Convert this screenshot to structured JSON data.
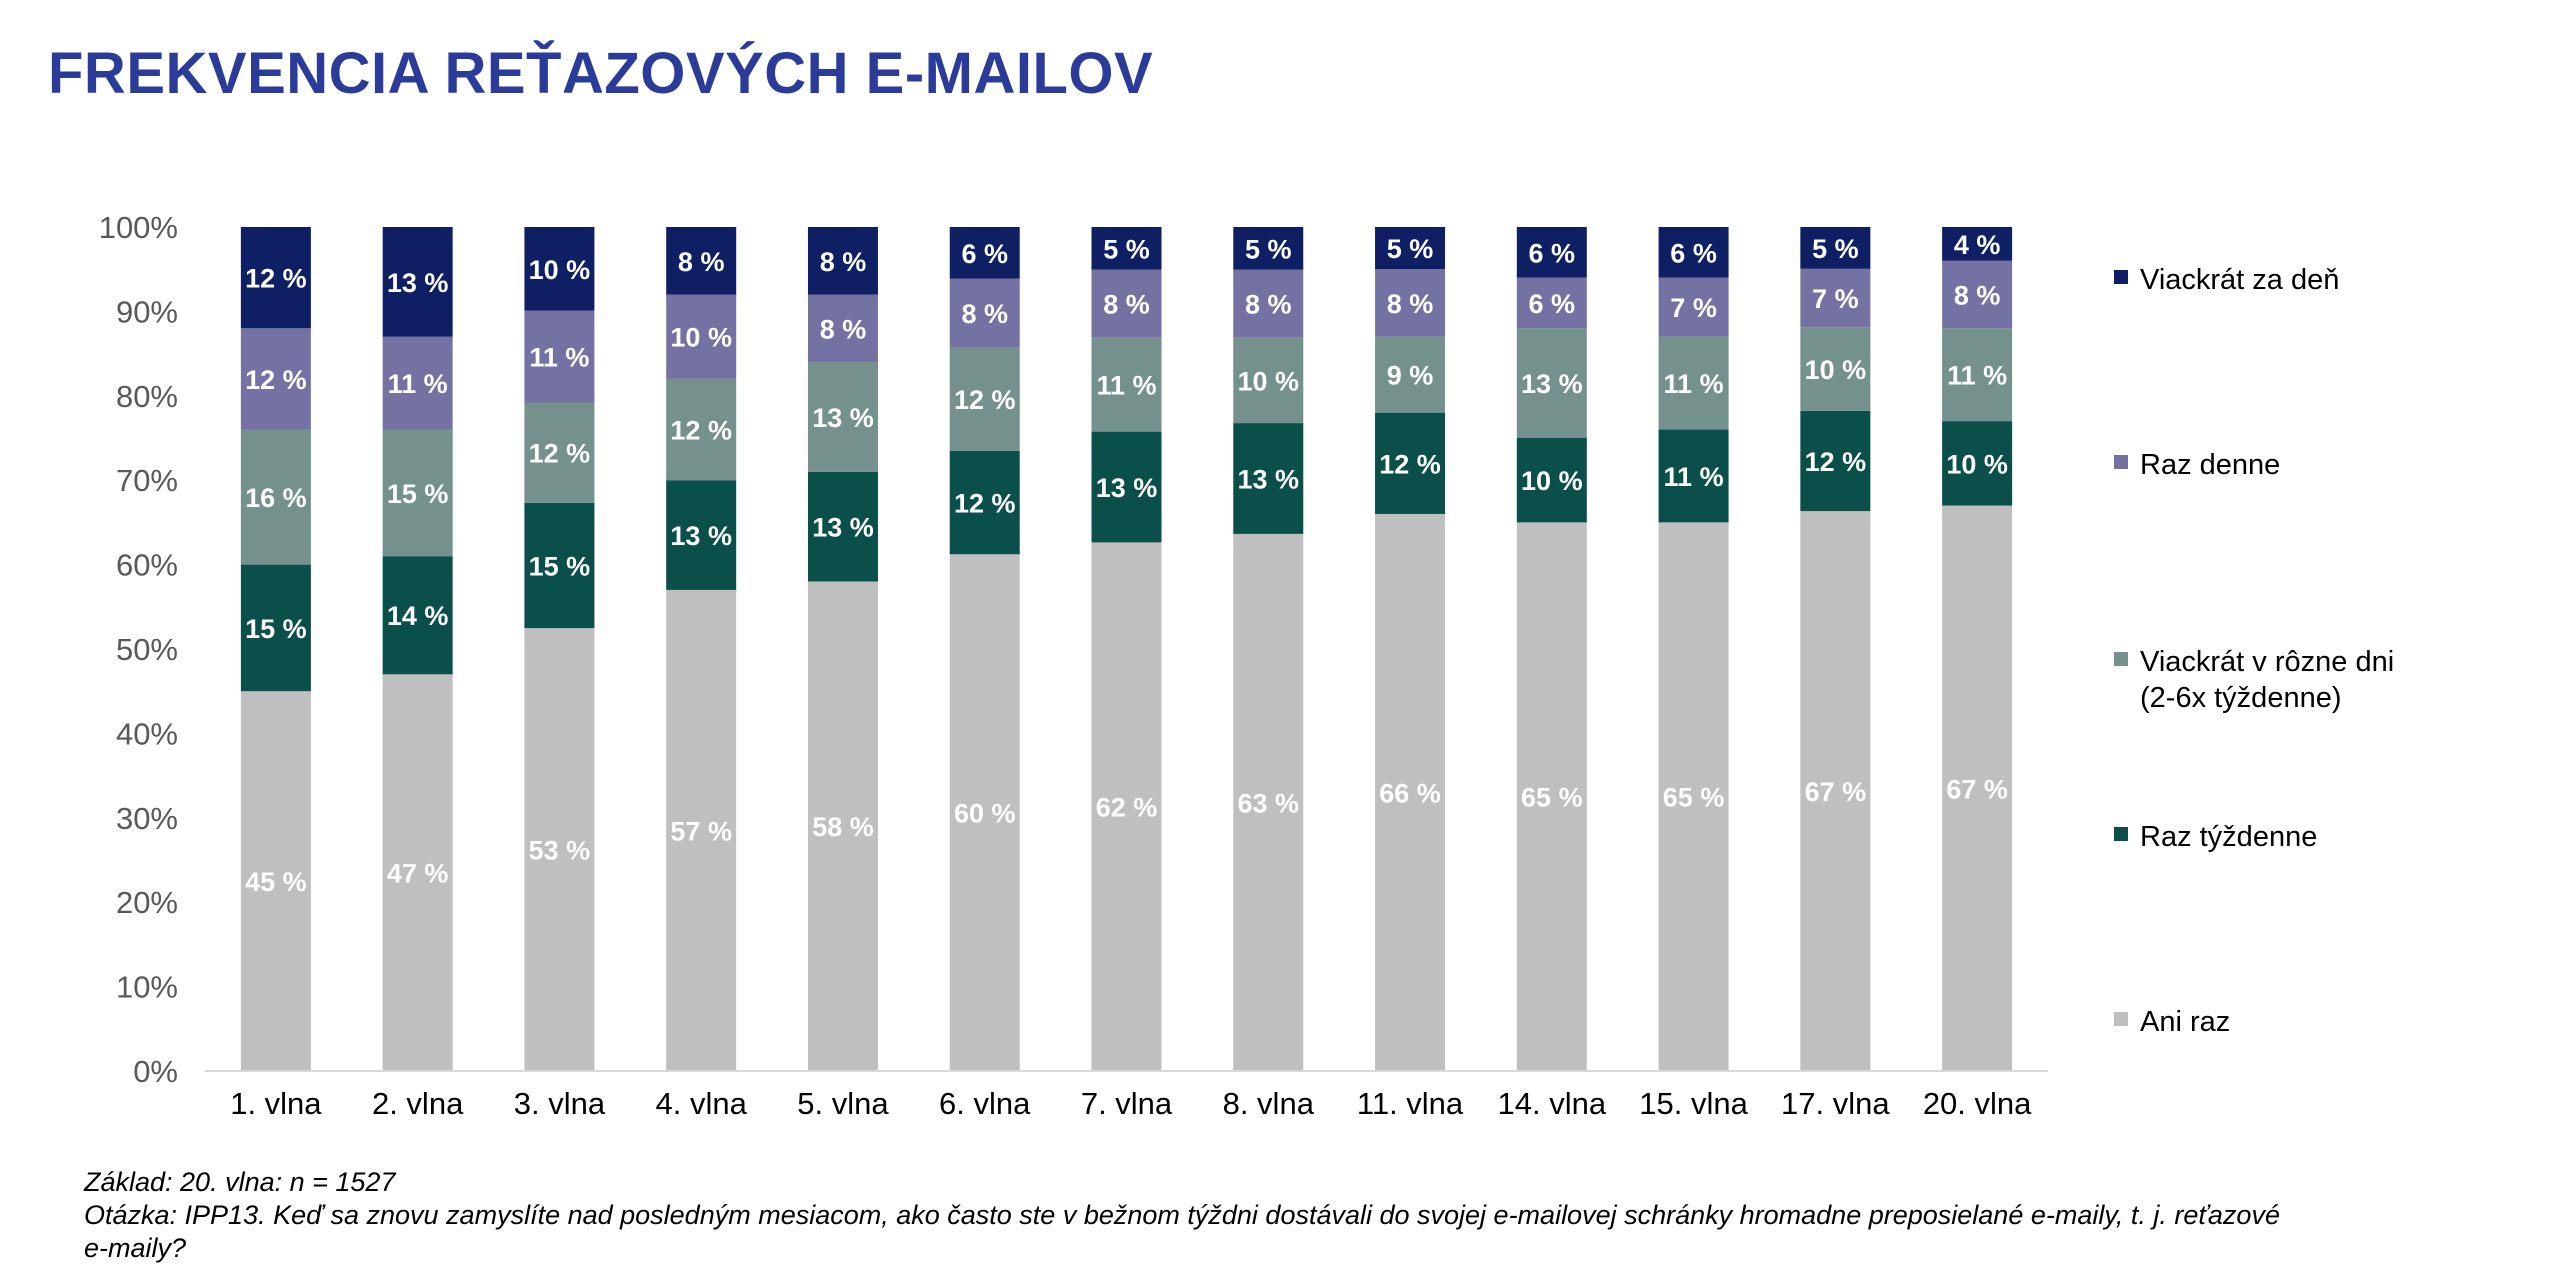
{
  "title": "FREKVENCIA REŤAZOVÝCH E-MAILOV",
  "chart_data": {
    "type": "bar",
    "stacked": true,
    "percent": true,
    "categories": [
      "1. vlna",
      "2. vlna",
      "3. vlna",
      "4. vlna",
      "5. vlna",
      "6. vlna",
      "7. vlna",
      "8. vlna",
      "11. vlna",
      "14. vlna",
      "15. vlna",
      "17. vlna",
      "20. vlna"
    ],
    "ylim": [
      0,
      100
    ],
    "yticks": [
      "0%",
      "10%",
      "20%",
      "30%",
      "40%",
      "50%",
      "60%",
      "70%",
      "80%",
      "90%",
      "100%"
    ],
    "grid": false,
    "legend_position": "right",
    "series": [
      {
        "name": "Ani raz",
        "color": "#BFBFBF",
        "values": [
          45,
          47,
          53,
          57,
          58,
          60,
          62,
          63,
          66,
          65,
          65,
          67,
          67
        ]
      },
      {
        "name": "Raz týždenne",
        "color": "#0B4F4B",
        "values": [
          15,
          14,
          15,
          13,
          13,
          12,
          13,
          13,
          12,
          10,
          11,
          12,
          10
        ]
      },
      {
        "name": "Viackrát v rôzne dni (2-6x týždenne)",
        "name_lines": [
          "Viackrát v rôzne dni",
          "(2-6x týždenne)"
        ],
        "color": "#75918D",
        "values": [
          16,
          15,
          12,
          12,
          13,
          12,
          11,
          10,
          9,
          13,
          11,
          10,
          11
        ]
      },
      {
        "name": "Raz denne",
        "color": "#7472A3",
        "values": [
          12,
          11,
          11,
          10,
          8,
          8,
          8,
          8,
          8,
          6,
          7,
          7,
          8
        ]
      },
      {
        "name": "Viackrát za deň",
        "color": "#0F1F63",
        "values": [
          12,
          13,
          10,
          8,
          8,
          6,
          5,
          5,
          5,
          6,
          6,
          5,
          4
        ]
      }
    ],
    "value_suffix": " %"
  },
  "notes": {
    "base": "Základ: 20. vlna: n = 1527",
    "question_line1": "Otázka: IPP13. Keď sa znovu zamyslíte nad posledným mesiacom, ako často ste v bežnom týždni dostávali do svojej e-mailovej schránky hromadne preposielané e-maily, t. j. reťazové",
    "question_line2": "e-maily?"
  }
}
